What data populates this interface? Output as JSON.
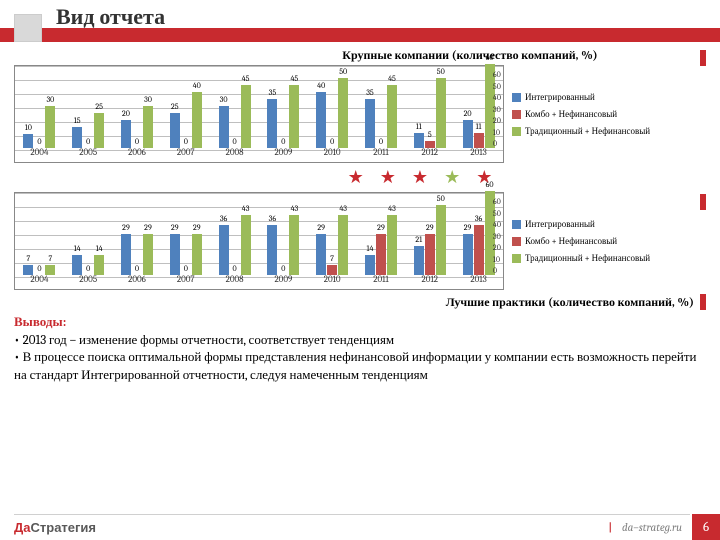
{
  "title": "Вид отчета",
  "colors": {
    "series1": "#4f81bd",
    "series2": "#c0504d",
    "series3": "#9bbb59",
    "accent": "#c82a2f",
    "grid": "#bfbfbf"
  },
  "chart1": {
    "title": "Крупные компании (количество компаний, %)",
    "ymax": 60,
    "ytick_step": 10,
    "categories": [
      "2004",
      "2005",
      "2006",
      "2007",
      "2008",
      "2009",
      "2010",
      "2011",
      "2012",
      "2013"
    ],
    "series": [
      {
        "name": "Интегрированный",
        "color": "#4f81bd",
        "values": [
          10,
          15,
          20,
          25,
          30,
          35,
          40,
          35,
          11,
          20
        ]
      },
      {
        "name": "Комбо + Нефинансовый",
        "color": "#c0504d",
        "values": [
          0,
          0,
          0,
          0,
          0,
          0,
          0,
          0,
          5,
          11
        ]
      },
      {
        "name": "Традиционный + Нефинансовый",
        "color": "#9bbb59",
        "values": [
          30,
          25,
          30,
          40,
          45,
          45,
          50,
          45,
          50,
          60
        ]
      }
    ],
    "mid_labels": [
      "",
      "",
      "",
      "25",
      "",
      "40",
      "",
      "40",
      "45",
      "45 50"
    ]
  },
  "chart2": {
    "ymax": 60,
    "ytick_step": 10,
    "categories": [
      "2004",
      "2005",
      "2006",
      "2007",
      "2008",
      "2009",
      "2010",
      "2011",
      "2012",
      "2013"
    ],
    "series": [
      {
        "name": "Интегрированный",
        "color": "#4f81bd",
        "values": [
          7,
          14,
          29,
          29,
          36,
          36,
          29,
          14,
          21,
          29
        ]
      },
      {
        "name": "Комбо + Нефинансовый",
        "color": "#c0504d",
        "values": [
          0,
          0,
          0,
          0,
          0,
          0,
          7,
          29,
          29,
          36
        ]
      },
      {
        "name": "Традиционный + Нефинансовый",
        "color": "#9bbb59",
        "values": [
          7,
          14,
          29,
          29,
          43,
          43,
          43,
          43,
          50,
          60
        ]
      }
    ]
  },
  "stars": [
    {
      "c": "#c82a2f"
    },
    {
      "c": "#c82a2f"
    },
    {
      "c": "#c82a2f"
    },
    {
      "c": "#9bbb59"
    },
    {
      "c": "#c82a2f"
    }
  ],
  "best_practices_title": "Лучшие практики (количество компаний, %)",
  "conclusions": {
    "heading": "Выводы:",
    "items": [
      "2013 год – изменение формы отчетности, соответствует тенденциям",
      "В процессе поиска оптимальной формы представления нефинансовой информации у компании есть возможность перейти на стандарт Интегрированной отчетности, следуя намеченным тенденциям"
    ]
  },
  "footer": {
    "logo_a": "Да",
    "logo_b": "Стратегия",
    "url": "da–strateg.ru",
    "page": "6"
  }
}
